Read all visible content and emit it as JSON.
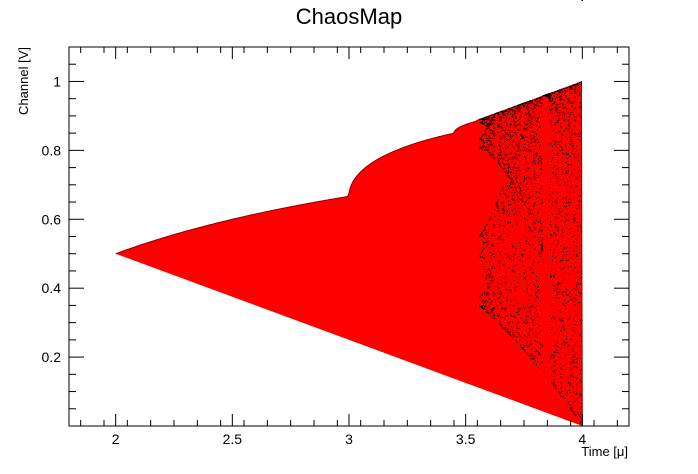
{
  "chart_data": {
    "type": "scatter",
    "title": "ChaosMap",
    "xlabel": "Time [μ]",
    "ylabel": "Channel [V]",
    "xlim": [
      1.8,
      4.2
    ],
    "ylim": [
      0.0,
      1.1
    ],
    "xticks": [
      2,
      2.5,
      3,
      3.5,
      4
    ],
    "xtick_labels": [
      "2",
      "2.5",
      "3",
      "3.5",
      "4"
    ],
    "yticks": [
      0.2,
      0.4,
      0.6,
      0.8,
      1
    ],
    "ytick_labels": [
      "0.2",
      "0.4",
      "0.6",
      "0.8",
      "1"
    ],
    "grid": false,
    "colors": {
      "fill": "#ff0000",
      "markers": "#000000",
      "frame": "#000000"
    },
    "series": [
      {
        "description_key": "logistic-map bifurcation",
        "x_range": [
          2.0,
          4.0
        ],
        "x_step": 0.004,
        "model": "x_{n+1} = r * x_n * (1 - x_n)",
        "y_min": 0.0,
        "y_max": 1.0
      }
    ]
  }
}
